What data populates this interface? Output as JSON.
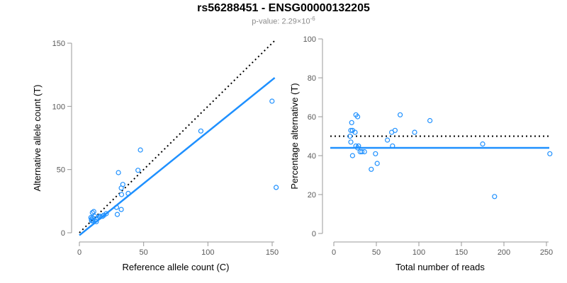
{
  "header": {
    "title": "rs56288451 - ENSG00000132205",
    "p_value_prefix": "p-value: 2.29×10",
    "p_value_exponent": "-6"
  },
  "colors": {
    "point_blue": "#1E90FF",
    "line_blue": "#1E90FF",
    "dotted_black": "#000000",
    "axis_gray": "#999999",
    "tick_label_gray": "#595959",
    "subtitle_gray": "#8c8c8c"
  },
  "chart_data": [
    {
      "type": "scatter",
      "name": "allele-counts",
      "xlabel": "Reference allele count (C)",
      "ylabel": "Alternative allele count (T)",
      "xlim": [
        0,
        155
      ],
      "ylim": [
        0,
        152
      ],
      "xticks": [
        0,
        50,
        100,
        150
      ],
      "yticks": [
        0,
        50,
        100,
        150
      ],
      "grid": false,
      "legend": "none",
      "points": [
        [
          9.5,
          9.5
        ],
        [
          10.6,
          9.4
        ],
        [
          9.0,
          12.0
        ],
        [
          9.4,
          10.6
        ],
        [
          10.3,
          11.7
        ],
        [
          13.2,
          8.8
        ],
        [
          12.0,
          13.0
        ],
        [
          10.1,
          15.9
        ],
        [
          11.2,
          16.8
        ],
        [
          14.3,
          11.7
        ],
        [
          15.7,
          12.3
        ],
        [
          18.0,
          13.0
        ],
        [
          16.0,
          13.1
        ],
        [
          19.1,
          13.9
        ],
        [
          20.9,
          15.1
        ],
        [
          29.5,
          14.5
        ],
        [
          28.9,
          20.1
        ],
        [
          32.6,
          18.4
        ],
        [
          32.8,
          30.2
        ],
        [
          32.6,
          35.4
        ],
        [
          33.8,
          38.2
        ],
        [
          38.0,
          31.1
        ],
        [
          30.4,
          47.6
        ],
        [
          45.6,
          49.4
        ],
        [
          47.5,
          65.5
        ],
        [
          94.5,
          80.5
        ],
        [
          153.1,
          35.9
        ],
        [
          149.9,
          104.1
        ]
      ],
      "lines": [
        {
          "meaning": "identity-1-to-1",
          "style": "dotted",
          "color": "#000000",
          "x1": 0,
          "y1": 0,
          "x2": 152,
          "y2": 152
        },
        {
          "meaning": "regression-fit",
          "style": "solid",
          "color": "#1E90FF",
          "x1": 0,
          "y1": -2,
          "x2": 152,
          "y2": 122.6
        }
      ]
    },
    {
      "type": "scatter",
      "name": "percentage-alternative",
      "xlabel": "Total number of reads",
      "ylabel": "Percentage alternative (T)",
      "xlim": [
        0,
        260
      ],
      "ylim": [
        0,
        100
      ],
      "xticks": [
        0,
        50,
        100,
        150,
        200,
        250
      ],
      "yticks": [
        0,
        20,
        40,
        60,
        80,
        100
      ],
      "grid": false,
      "legend": "none",
      "points": [
        [
          19,
          50
        ],
        [
          20,
          47
        ],
        [
          21,
          57
        ],
        [
          20,
          53
        ],
        [
          22,
          53
        ],
        [
          22,
          40
        ],
        [
          25,
          52
        ],
        [
          26,
          61
        ],
        [
          28,
          60
        ],
        [
          26,
          45
        ],
        [
          28,
          44
        ],
        [
          31,
          42
        ],
        [
          29,
          45
        ],
        [
          33,
          42
        ],
        [
          36,
          42
        ],
        [
          44,
          33
        ],
        [
          49,
          41
        ],
        [
          51,
          36
        ],
        [
          63,
          48
        ],
        [
          68,
          52
        ],
        [
          72,
          53
        ],
        [
          69,
          45
        ],
        [
          78,
          61
        ],
        [
          95,
          52
        ],
        [
          113,
          58
        ],
        [
          175,
          46
        ],
        [
          189,
          19
        ],
        [
          254,
          41
        ]
      ],
      "lines": [
        {
          "meaning": "null-50-percent",
          "style": "dotted",
          "color": "#000000",
          "y": 50
        },
        {
          "meaning": "mean-percentage",
          "style": "solid",
          "color": "#1E90FF",
          "y": 44
        }
      ]
    }
  ]
}
